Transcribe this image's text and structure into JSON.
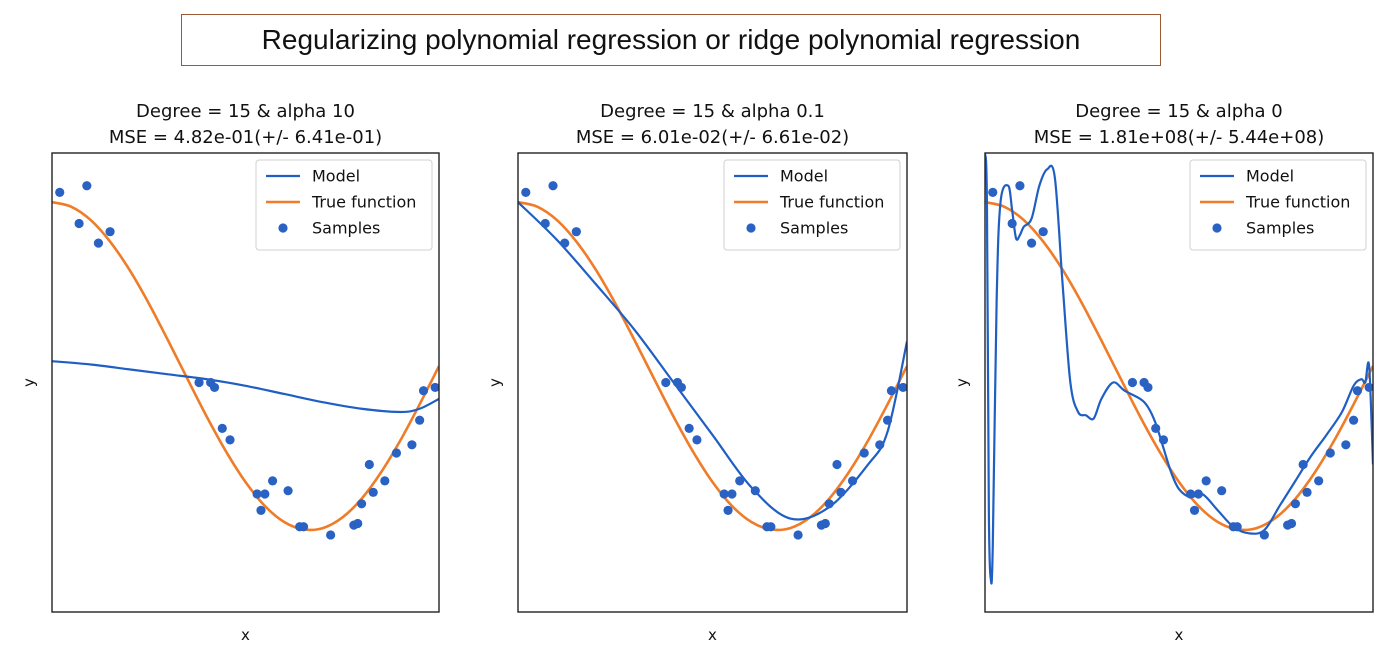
{
  "figure_title": "Regularizing polynomial regression or ridge polynomial regression",
  "colors": {
    "model": "#1f5fc4",
    "true_function": "#ef7c28",
    "samples": "#2a62c4",
    "title_border": "#9b5a34"
  },
  "chart_data": [
    {
      "type": "line",
      "title": "Degree = 15 & alpha 10",
      "subtitle": "MSE = 4.82e-01(+/- 6.41e-01)",
      "xlabel": "x",
      "ylabel": "y",
      "xticks": "none",
      "yticks": "none",
      "legend": {
        "position": "top-right",
        "entries": [
          "Model",
          "True function",
          "Samples"
        ]
      },
      "xlim": [
        0,
        1
      ],
      "ylim": [
        -1.5,
        1.3
      ],
      "true_function": "cos(1.5*pi*x)",
      "series": [
        {
          "name": "Model",
          "kind": "line",
          "x": [
            0,
            0.1,
            0.2,
            0.3,
            0.4,
            0.5,
            0.6,
            0.7,
            0.8,
            0.9,
            0.95,
            1.0
          ],
          "y": [
            0.03,
            0.01,
            -0.02,
            -0.05,
            -0.08,
            -0.12,
            -0.17,
            -0.22,
            -0.26,
            -0.28,
            -0.26,
            -0.2
          ]
        },
        {
          "name": "True function",
          "kind": "line",
          "x": [
            0,
            0.05,
            0.1,
            0.15,
            0.2,
            0.25,
            0.3,
            0.35,
            0.4,
            0.45,
            0.5,
            0.55,
            0.6,
            0.65,
            0.7,
            0.75,
            0.8,
            0.85,
            0.9,
            0.95,
            1.0
          ],
          "y": [
            1.0,
            0.972,
            0.891,
            0.76,
            0.588,
            0.383,
            0.156,
            -0.078,
            -0.309,
            -0.522,
            -0.707,
            -0.853,
            -0.951,
            -0.996,
            -0.988,
            -0.924,
            -0.809,
            -0.649,
            -0.454,
            -0.233,
            0.0
          ]
        },
        {
          "name": "Samples",
          "kind": "scatter",
          "x": [
            0.02,
            0.07,
            0.09,
            0.12,
            0.15,
            0.38,
            0.41,
            0.42,
            0.44,
            0.46,
            0.53,
            0.54,
            0.55,
            0.57,
            0.61,
            0.64,
            0.65,
            0.72,
            0.78,
            0.79,
            0.8,
            0.82,
            0.83,
            0.86,
            0.89,
            0.93,
            0.95,
            0.96,
            0.99
          ],
          "y": [
            1.06,
            0.87,
            1.1,
            0.75,
            0.82,
            -0.1,
            -0.1,
            -0.13,
            -0.38,
            -0.45,
            -0.78,
            -0.88,
            -0.78,
            -0.7,
            -0.76,
            -0.98,
            -0.98,
            -1.03,
            -0.97,
            -0.96,
            -0.84,
            -0.6,
            -0.77,
            -0.7,
            -0.53,
            -0.48,
            -0.33,
            -0.15,
            -0.13
          ]
        }
      ]
    },
    {
      "type": "line",
      "title": "Degree = 15 & alpha 0.1",
      "subtitle": "MSE = 6.01e-02(+/- 6.61e-02)",
      "xlabel": "x",
      "ylabel": "y",
      "xticks": "none",
      "yticks": "none",
      "legend": {
        "position": "top-right",
        "entries": [
          "Model",
          "True function",
          "Samples"
        ]
      },
      "xlim": [
        0,
        1
      ],
      "ylim": [
        -1.5,
        1.3
      ],
      "true_function": "cos(1.5*pi*x)",
      "series": [
        {
          "name": "Model",
          "kind": "line",
          "x": [
            0,
            0.1,
            0.2,
            0.3,
            0.4,
            0.5,
            0.6,
            0.7,
            0.8,
            0.9,
            0.95,
            1.0
          ],
          "y": [
            1.0,
            0.77,
            0.5,
            0.22,
            -0.1,
            -0.42,
            -0.74,
            -0.93,
            -0.86,
            -0.6,
            -0.4,
            0.15
          ]
        },
        {
          "name": "True function",
          "kind": "line",
          "x": [
            0,
            0.05,
            0.1,
            0.15,
            0.2,
            0.25,
            0.3,
            0.35,
            0.4,
            0.45,
            0.5,
            0.55,
            0.6,
            0.65,
            0.7,
            0.75,
            0.8,
            0.85,
            0.9,
            0.95,
            1.0
          ],
          "y": [
            1.0,
            0.972,
            0.891,
            0.76,
            0.588,
            0.383,
            0.156,
            -0.078,
            -0.309,
            -0.522,
            -0.707,
            -0.853,
            -0.951,
            -0.996,
            -0.988,
            -0.924,
            -0.809,
            -0.649,
            -0.454,
            -0.233,
            0.0
          ]
        },
        {
          "name": "Samples",
          "kind": "scatter",
          "x": [
            0.02,
            0.07,
            0.09,
            0.12,
            0.15,
            0.38,
            0.41,
            0.42,
            0.44,
            0.46,
            0.53,
            0.54,
            0.55,
            0.57,
            0.61,
            0.64,
            0.65,
            0.72,
            0.78,
            0.79,
            0.8,
            0.82,
            0.83,
            0.86,
            0.89,
            0.93,
            0.95,
            0.96,
            0.99
          ],
          "y": [
            1.06,
            0.87,
            1.1,
            0.75,
            0.82,
            -0.1,
            -0.1,
            -0.13,
            -0.38,
            -0.45,
            -0.78,
            -0.88,
            -0.78,
            -0.7,
            -0.76,
            -0.98,
            -0.98,
            -1.03,
            -0.97,
            -0.96,
            -0.84,
            -0.6,
            -0.77,
            -0.7,
            -0.53,
            -0.48,
            -0.33,
            -0.15,
            -0.13
          ]
        }
      ]
    },
    {
      "type": "line",
      "title": "Degree = 15 & alpha 0",
      "subtitle": "MSE = 1.81e+08(+/- 5.44e+08)",
      "xlabel": "x",
      "ylabel": "y",
      "xticks": "none",
      "yticks": "none",
      "legend": {
        "position": "top-right",
        "entries": [
          "Model",
          "True function",
          "Samples"
        ]
      },
      "xlim": [
        0,
        1
      ],
      "ylim": [
        -1.5,
        1.3
      ],
      "true_function": "cos(1.5*pi*x)",
      "series": [
        {
          "name": "Model",
          "kind": "line",
          "x": [
            0.0,
            0.005,
            0.01,
            0.015,
            0.02,
            0.03,
            0.04,
            0.06,
            0.07,
            0.08,
            0.09,
            0.1,
            0.12,
            0.14,
            0.16,
            0.18,
            0.2,
            0.22,
            0.24,
            0.26,
            0.28,
            0.3,
            0.33,
            0.36,
            0.4,
            0.42,
            0.44,
            0.46,
            0.48,
            0.5,
            0.53,
            0.56,
            0.6,
            0.64,
            0.68,
            0.72,
            0.76,
            0.8,
            0.84,
            0.88,
            0.92,
            0.95,
            0.97,
            0.98,
            0.99,
            1.0
          ],
          "y": [
            1.3,
            1.0,
            -0.9,
            -1.3,
            -1.1,
            0.4,
            1.0,
            1.1,
            0.95,
            0.78,
            0.8,
            0.85,
            0.9,
            1.1,
            1.2,
            1.15,
            0.5,
            -0.1,
            -0.28,
            -0.3,
            -0.32,
            -0.2,
            -0.1,
            -0.15,
            -0.2,
            -0.25,
            -0.35,
            -0.5,
            -0.65,
            -0.75,
            -0.8,
            -0.78,
            -0.88,
            -0.98,
            -1.02,
            -1.0,
            -0.85,
            -0.7,
            -0.55,
            -0.42,
            -0.28,
            -0.12,
            -0.08,
            -0.1,
            0.0,
            -0.6
          ]
        },
        {
          "name": "True function",
          "kind": "line",
          "x": [
            0,
            0.05,
            0.1,
            0.15,
            0.2,
            0.25,
            0.3,
            0.35,
            0.4,
            0.45,
            0.5,
            0.55,
            0.6,
            0.65,
            0.7,
            0.75,
            0.8,
            0.85,
            0.9,
            0.95,
            1.0
          ],
          "y": [
            1.0,
            0.972,
            0.891,
            0.76,
            0.588,
            0.383,
            0.156,
            -0.078,
            -0.309,
            -0.522,
            -0.707,
            -0.853,
            -0.951,
            -0.996,
            -0.988,
            -0.924,
            -0.809,
            -0.649,
            -0.454,
            -0.233,
            0.0
          ]
        },
        {
          "name": "Samples",
          "kind": "scatter",
          "x": [
            0.02,
            0.07,
            0.09,
            0.12,
            0.15,
            0.38,
            0.41,
            0.42,
            0.44,
            0.46,
            0.53,
            0.54,
            0.55,
            0.57,
            0.61,
            0.64,
            0.65,
            0.72,
            0.78,
            0.79,
            0.8,
            0.82,
            0.83,
            0.86,
            0.89,
            0.93,
            0.95,
            0.96,
            0.99
          ],
          "y": [
            1.06,
            0.87,
            1.1,
            0.75,
            0.82,
            -0.1,
            -0.1,
            -0.13,
            -0.38,
            -0.45,
            -0.78,
            -0.88,
            -0.78,
            -0.7,
            -0.76,
            -0.98,
            -0.98,
            -1.03,
            -0.97,
            -0.96,
            -0.84,
            -0.6,
            -0.77,
            -0.7,
            -0.53,
            -0.48,
            -0.33,
            -0.15,
            -0.13
          ]
        }
      ]
    }
  ]
}
